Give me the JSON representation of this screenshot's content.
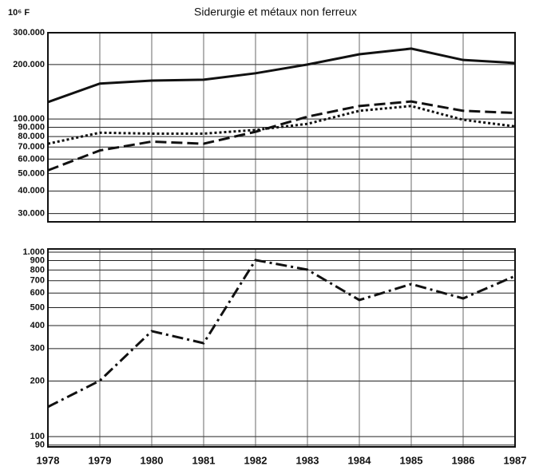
{
  "chart_data": [
    {
      "type": "line",
      "title": "Siderurgie et métaux non ferreux",
      "y_label": "10⁶ F",
      "log_y": true,
      "grid": true,
      "x": [
        1978,
        1979,
        1980,
        1981,
        1982,
        1983,
        1984,
        1985,
        1986,
        1987
      ],
      "xlim": [
        1978,
        1987
      ],
      "xticks": [
        1978,
        1979,
        1980,
        1981,
        1982,
        1983,
        1984,
        1985,
        1986,
        1987
      ],
      "ylim": [
        27000,
        300000
      ],
      "yticks": [
        {
          "value": 300000,
          "label": "300.000"
        },
        {
          "value": 200000,
          "label": "200.000"
        },
        {
          "value": 100000,
          "label": "100.000"
        },
        {
          "value": 90000,
          "label": "90.000"
        },
        {
          "value": 80000,
          "label": "80.000"
        },
        {
          "value": 70000,
          "label": "70.000"
        },
        {
          "value": 60000,
          "label": "60.000"
        },
        {
          "value": 50000,
          "label": "50.000"
        },
        {
          "value": 40000,
          "label": "40.000"
        },
        {
          "value": 30000,
          "label": "30.000"
        }
      ],
      "series": [
        {
          "color": "#111111",
          "dash": "solid",
          "values": [
            124000,
            157000,
            163000,
            165000,
            179000,
            200000,
            228000,
            245000,
            212000,
            204000
          ]
        },
        {
          "color": "#111111",
          "dash": "dashed",
          "values": [
            52000,
            67000,
            75000,
            73000,
            85000,
            103000,
            118000,
            125000,
            111000,
            108000
          ]
        },
        {
          "color": "#111111",
          "dash": "dotted",
          "values": [
            73000,
            84000,
            83000,
            83000,
            87000,
            94000,
            111000,
            118000,
            99000,
            91000
          ]
        }
      ]
    },
    {
      "type": "line",
      "log_y": true,
      "grid": true,
      "x": [
        1978,
        1979,
        1980,
        1981,
        1982,
        1983,
        1984,
        1985,
        1986,
        1987
      ],
      "xlim": [
        1978,
        1987
      ],
      "xticks": [
        1978,
        1979,
        1980,
        1981,
        1982,
        1983,
        1984,
        1985,
        1986,
        1987
      ],
      "ylim": [
        88,
        1040
      ],
      "yticks": [
        {
          "value": 1000,
          "label": "1.000"
        },
        900,
        800,
        700,
        600,
        500,
        400,
        300,
        200,
        100,
        90
      ],
      "series": [
        {
          "color": "#111111",
          "dash": "dashdot",
          "values": [
            145,
            201,
            373,
            321,
            905,
            803,
            550,
            671,
            561,
            742
          ]
        }
      ]
    }
  ]
}
